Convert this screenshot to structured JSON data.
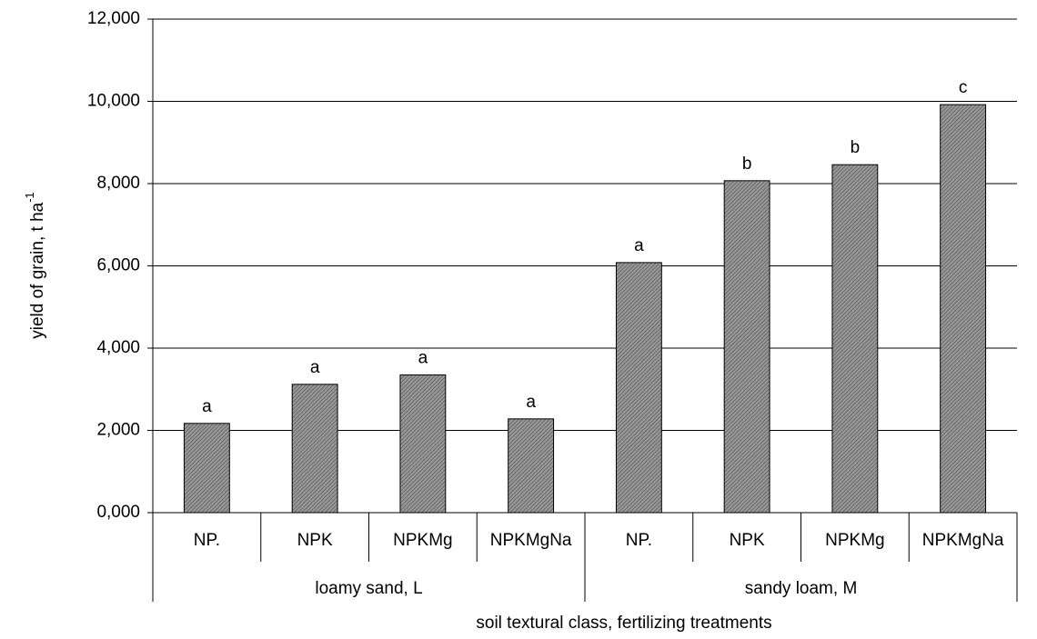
{
  "chart_data": {
    "type": "bar",
    "ylabel": "yield of grain, t ha",
    "ylabel_sup": "-1",
    "xlabel": "soil textural class, fertilizing treatments",
    "color": "#7a7a7a",
    "grid": true,
    "ylim": [
      0,
      12000
    ],
    "yticks": [
      {
        "value": 0,
        "label": "0,000"
      },
      {
        "value": 2000,
        "label": "2,000"
      },
      {
        "value": 4000,
        "label": "4,000"
      },
      {
        "value": 6000,
        "label": "6,000"
      },
      {
        "value": 8000,
        "label": "8,000"
      },
      {
        "value": 10000,
        "label": "10,000"
      },
      {
        "value": 12000,
        "label": "12,000"
      }
    ],
    "groups": [
      {
        "name": "loamy sand, L",
        "categories": [
          "NP.",
          "NPK",
          "NPKMg",
          "NPKMgNa"
        ],
        "values": [
          2170,
          3120,
          3350,
          2280
        ],
        "letters": [
          "a",
          "a",
          "a",
          "a"
        ]
      },
      {
        "name": "sandy loam, M",
        "categories": [
          "NP.",
          "NPK",
          "NPKMg",
          "NPKMgNa"
        ],
        "values": [
          6080,
          8070,
          8460,
          9920
        ],
        "letters": [
          "a",
          "b",
          "b",
          "c"
        ]
      }
    ]
  }
}
